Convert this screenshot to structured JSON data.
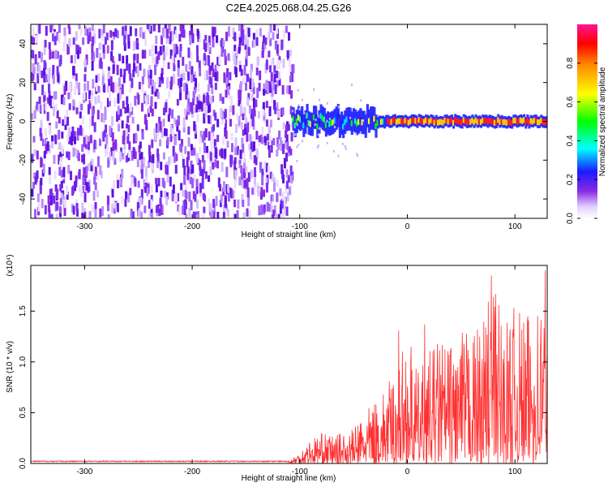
{
  "title": "C2E4.2025.068.04.25.G26",
  "colors": {
    "snr_line": "#ff3030",
    "axis": "#000000",
    "background": "#ffffff"
  },
  "chart_data": [
    {
      "type": "heatmap",
      "name": "spectrogram",
      "title": "C2E4.2025.068.04.25.G26",
      "xlabel": "Height of straight line (km)",
      "ylabel": "Frequency (Hz)",
      "xlim": [
        -350,
        130
      ],
      "ylim": [
        -50,
        50
      ],
      "x_ticks": [
        -300,
        -200,
        -100,
        0,
        100
      ],
      "x_tick_labels": [
        "-300",
        "-200",
        "-100",
        "0",
        "100"
      ],
      "y_ticks": [
        40,
        20,
        0,
        -20,
        -40
      ],
      "y_tick_labels": [
        "40",
        "20",
        "0",
        "-20",
        "-40"
      ],
      "noise_region_km": [
        -350,
        -107
      ],
      "signal_band_hz": [
        -5,
        5
      ],
      "colorbar": {
        "label": "Normalized spectral amplitude",
        "range": [
          0,
          1
        ],
        "ticks": [
          0.0,
          0.2,
          0.4,
          0.6,
          0.8
        ],
        "tick_labels": [
          "0.0",
          "0.2",
          "0.4",
          "0.6",
          "0.8"
        ]
      }
    },
    {
      "type": "line",
      "name": "snr",
      "xlabel": "Height of straight line (km)",
      "ylabel": "SNR (10 * v/v)",
      "y_scale_label": "(x10⁴)",
      "xlim": [
        -350,
        130
      ],
      "ylim": [
        0,
        1.95
      ],
      "x_ticks": [
        -300,
        -200,
        -100,
        0,
        100
      ],
      "x_tick_labels": [
        "-300",
        "-200",
        "-100",
        "0",
        "100"
      ],
      "y_ticks": [
        0.0,
        0.5,
        1.0,
        1.5
      ],
      "y_tick_labels": [
        "0.0",
        "0.5",
        "1.0",
        "1.5"
      ],
      "series": [
        {
          "name": "SNR",
          "envelope": {
            "x": [
              -350,
              -110,
              -100,
              -90,
              -80,
              -70,
              -60,
              -50,
              -40,
              -30,
              -20,
              -10,
              0,
              10,
              20,
              30,
              40,
              50,
              60,
              70,
              80,
              90,
              100,
              110,
              120,
              130
            ],
            "y": [
              0.02,
              0.03,
              0.12,
              0.25,
              0.3,
              0.28,
              0.3,
              0.35,
              0.5,
              0.62,
              0.75,
              0.95,
              1.3,
              0.9,
              1.1,
              1.25,
              1.2,
              1.3,
              1.3,
              1.4,
              1.85,
              1.4,
              1.55,
              1.45,
              1.6,
              1.9
            ]
          },
          "peaks": [
            {
              "x": -8,
              "y": 1.31
            },
            {
              "x": 16,
              "y": 1.37
            },
            {
              "x": 78,
              "y": 1.85
            },
            {
              "x": 128,
              "y": 1.9
            }
          ]
        }
      ]
    }
  ]
}
